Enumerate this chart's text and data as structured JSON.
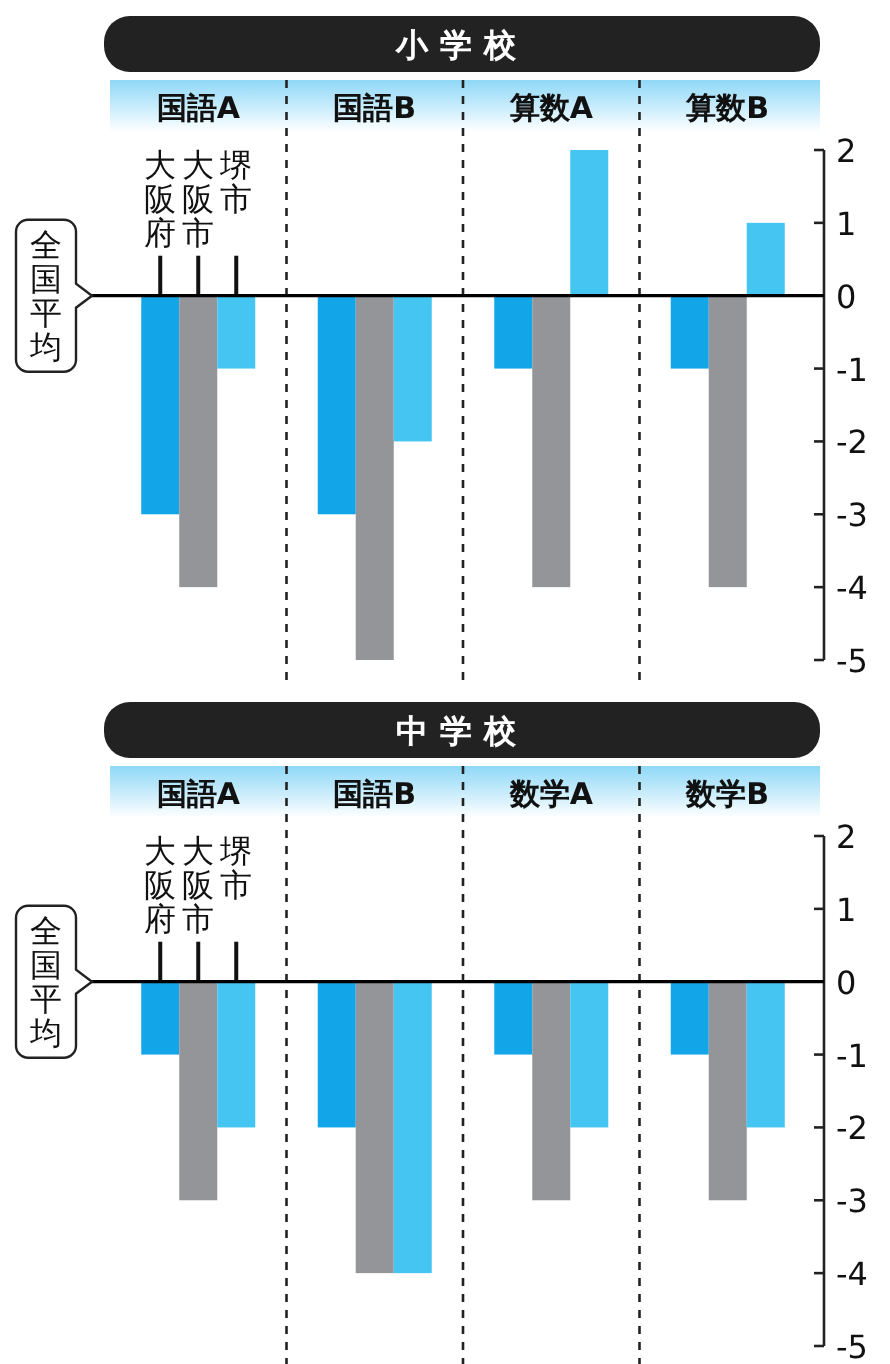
{
  "chart_data": [
    {
      "type": "bar",
      "title": "小学校",
      "categories": [
        "国語A",
        "国語B",
        "算数A",
        "算数B"
      ],
      "series": [
        {
          "name": "大阪府",
          "color": "#12a5e8",
          "values": [
            -3,
            -3,
            -1,
            -1
          ]
        },
        {
          "name": "大阪市",
          "color": "#939598",
          "values": [
            -4,
            -5,
            -4,
            -4
          ]
        },
        {
          "name": "堺市",
          "color": "#45c6f2",
          "values": [
            -1,
            -2,
            2,
            1
          ]
        }
      ],
      "ylim": [
        -5,
        2
      ],
      "yticks": [
        2,
        1,
        0,
        -1,
        -2,
        -3,
        -4,
        -5
      ],
      "ref_lines": [
        {
          "axis": "y",
          "value": 0,
          "label": "全国平均",
          "color": "#000000"
        }
      ]
    },
    {
      "type": "bar",
      "title": "中学校",
      "categories": [
        "国語A",
        "国語B",
        "数学A",
        "数学B"
      ],
      "series": [
        {
          "name": "大阪府",
          "color": "#12a5e8",
          "values": [
            -1,
            -2,
            -1,
            -1
          ]
        },
        {
          "name": "大阪市",
          "color": "#939598",
          "values": [
            -3,
            -4,
            -3,
            -3
          ]
        },
        {
          "name": "堺市",
          "color": "#45c6f2",
          "values": [
            -2,
            -4,
            -2,
            -2
          ]
        }
      ],
      "ylim": [
        -5,
        2
      ],
      "yticks": [
        2,
        1,
        0,
        -1,
        -2,
        -3,
        -4,
        -5
      ],
      "ref_lines": [
        {
          "axis": "y",
          "value": 0,
          "label": "全国平均",
          "color": "#000000"
        }
      ]
    }
  ]
}
